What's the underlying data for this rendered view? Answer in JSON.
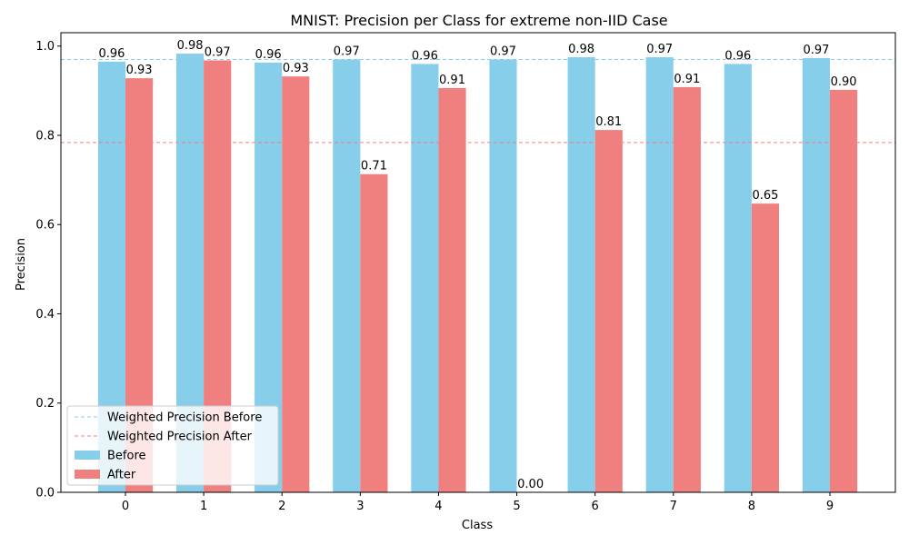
{
  "chart_data": {
    "type": "bar",
    "title": "MNIST: Precision per Class for extreme non-IID Case",
    "xlabel": "Class",
    "ylabel": "Precision",
    "categories": [
      "0",
      "1",
      "2",
      "3",
      "4",
      "5",
      "6",
      "7",
      "8",
      "9"
    ],
    "ylim": [
      0,
      1.03
    ],
    "yticks": [
      0.0,
      0.2,
      0.4,
      0.6,
      0.8,
      1.0
    ],
    "ytick_labels": [
      "0.0",
      "0.2",
      "0.4",
      "0.6",
      "0.8",
      "1.0"
    ],
    "series": [
      {
        "name": "Before",
        "color": "#87ceeb",
        "values": [
          0.965,
          0.983,
          0.963,
          0.97,
          0.96,
          0.97,
          0.975,
          0.975,
          0.96,
          0.973
        ],
        "labels": [
          "0.96",
          "0.98",
          "0.96",
          "0.97",
          "0.96",
          "0.97",
          "0.98",
          "0.97",
          "0.96",
          "0.97"
        ]
      },
      {
        "name": "After",
        "color": "#f08080",
        "values": [
          0.928,
          0.968,
          0.932,
          0.713,
          0.906,
          0.0,
          0.812,
          0.908,
          0.647,
          0.902
        ],
        "labels": [
          "0.93",
          "0.97",
          "0.93",
          "0.71",
          "0.91",
          "0.00",
          "0.81",
          "0.91",
          "0.65",
          "0.90"
        ]
      }
    ],
    "reference_lines": [
      {
        "name": "Weighted Precision Before",
        "value": 0.97,
        "color": "#87ceeb",
        "style": "dashed"
      },
      {
        "name": "Weighted Precision After",
        "value": 0.784,
        "color": "#f08080",
        "style": "dashed"
      }
    ],
    "legend": "lower-left",
    "grid": false
  }
}
